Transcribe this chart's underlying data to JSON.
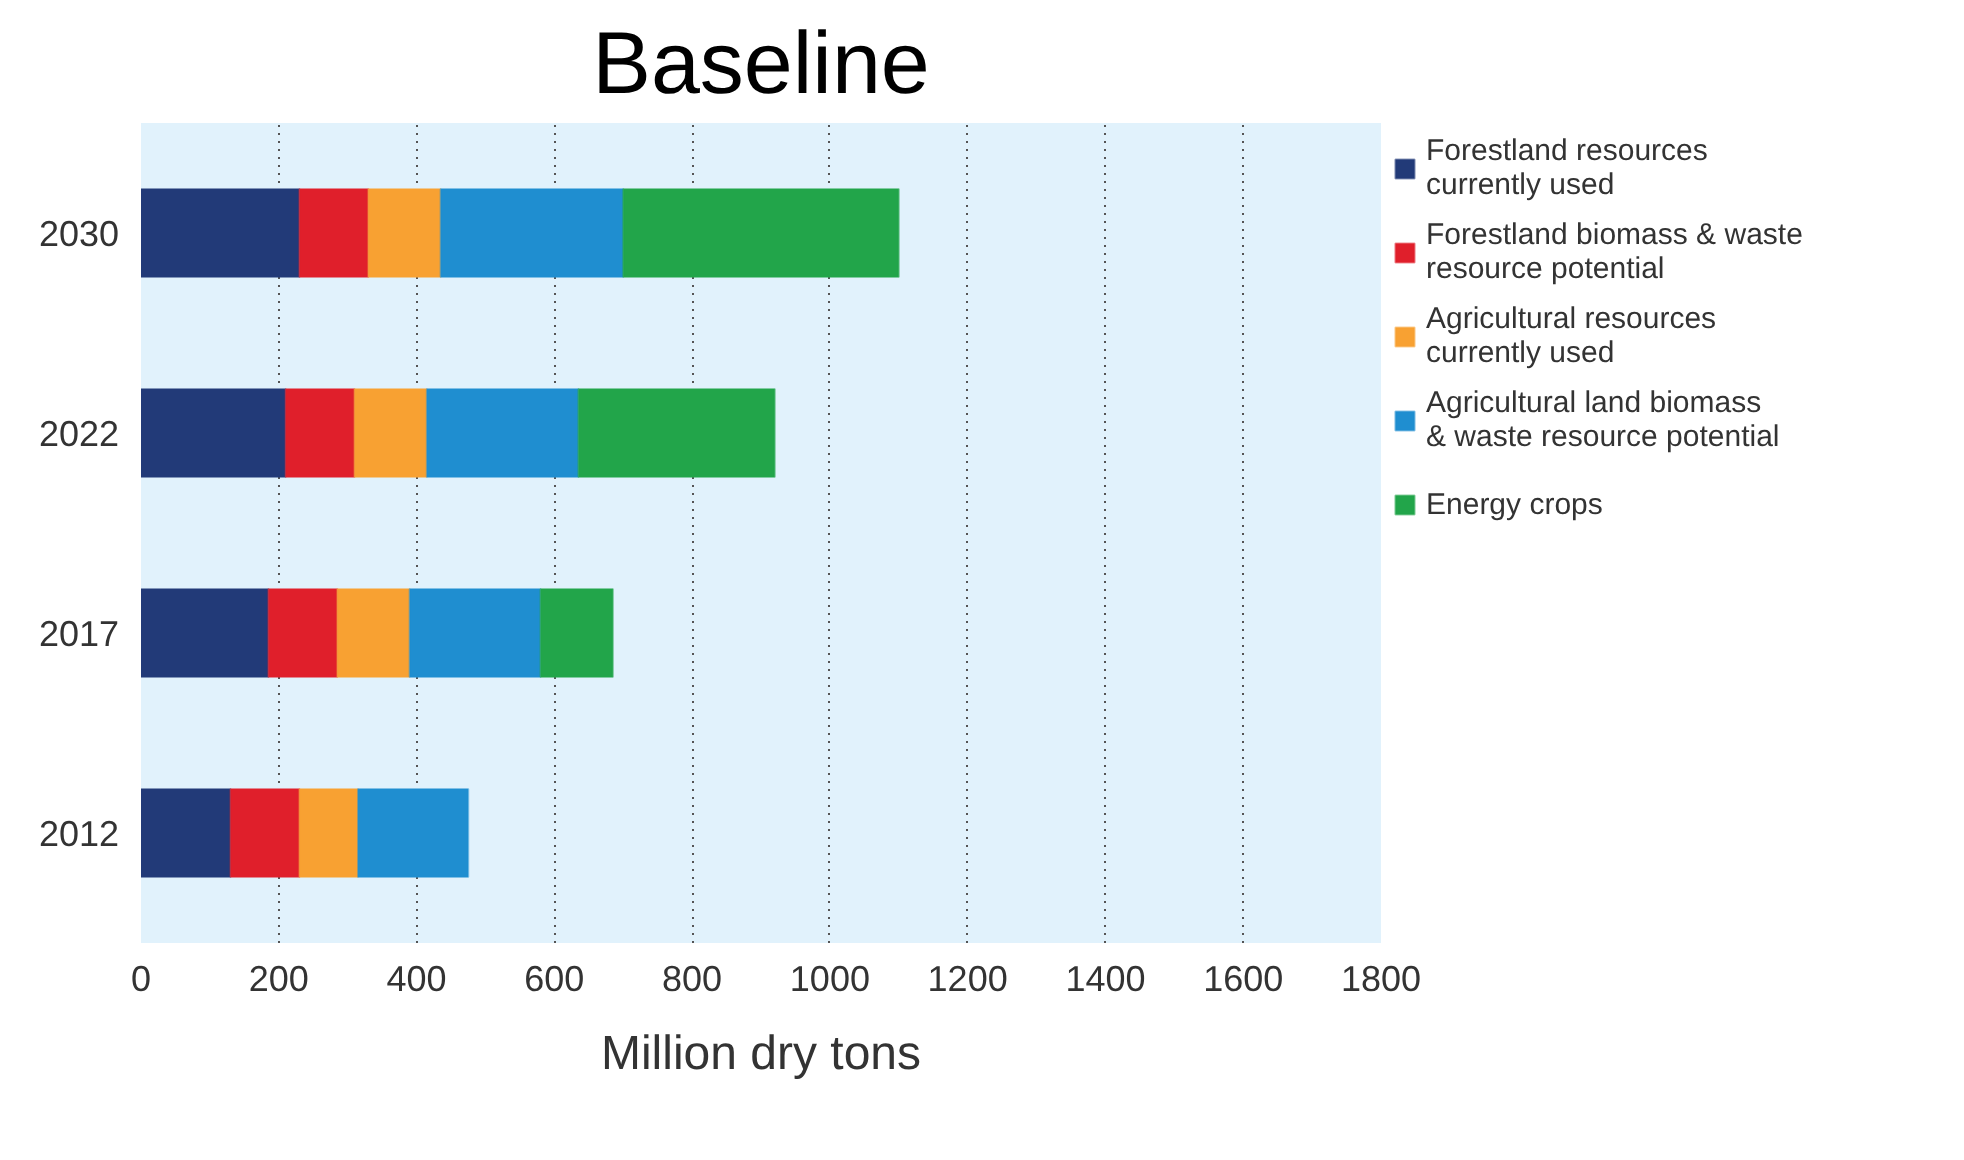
{
  "chart_data": {
    "type": "bar",
    "orientation": "horizontal",
    "stacked": true,
    "title": "Baseline",
    "xlabel": "Million dry tons",
    "categories": [
      "2030",
      "2022",
      "2017",
      "2012"
    ],
    "series": [
      {
        "name": "Forestland resources currently used",
        "color": "#223a78",
        "values": [
          230,
          210,
          185,
          130
        ]
      },
      {
        "name": "Forestland biomass & waste resource potential",
        "color": "#e01f2b",
        "values": [
          100,
          100,
          100,
          100
        ]
      },
      {
        "name": "Agricultural resources currently used",
        "color": "#f8a132",
        "values": [
          105,
          105,
          105,
          85
        ]
      },
      {
        "name": "Agricultural land biomass & waste resource potential",
        "color": "#1f8ed0",
        "values": [
          265,
          220,
          190,
          160
        ]
      },
      {
        "name": "Energy crops",
        "color": "#22a54a",
        "values": [
          400,
          285,
          105,
          null
        ]
      }
    ],
    "xlim": [
      0,
      1800
    ],
    "xticks": [
      0,
      200,
      400,
      600,
      800,
      1000,
      1200,
      1400,
      1600,
      1800
    ],
    "grid": "x",
    "legend": "right"
  }
}
